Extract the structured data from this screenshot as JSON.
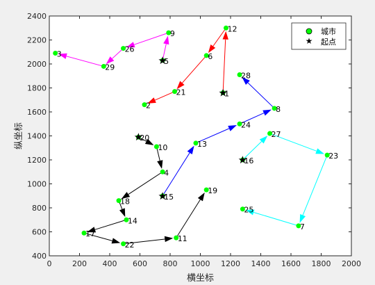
{
  "chart_data": {
    "type": "scatter",
    "xlabel": "横坐标",
    "ylabel": "纵坐标",
    "xlim": [
      0,
      2000
    ],
    "ylim": [
      400,
      2400
    ],
    "xticks": [
      0,
      200,
      400,
      600,
      800,
      1000,
      1200,
      1400,
      1600,
      1800,
      2000
    ],
    "yticks": [
      400,
      600,
      800,
      1000,
      1200,
      1400,
      1600,
      1800,
      2000,
      2200,
      2400
    ],
    "grid": false,
    "legend": {
      "placement": "top-right",
      "entries": [
        {
          "label": "城市",
          "marker": "circle",
          "color": "#00ff00"
        },
        {
          "label": "起点",
          "marker": "star",
          "color": "#000000"
        }
      ]
    },
    "cities": [
      {
        "id": "1",
        "x": 1150,
        "y": 1760
      },
      {
        "id": "2",
        "x": 630,
        "y": 1660
      },
      {
        "id": "3",
        "x": 40,
        "y": 2090
      },
      {
        "id": "4",
        "x": 750,
        "y": 1100
      },
      {
        "id": "5",
        "x": 750,
        "y": 2030
      },
      {
        "id": "6",
        "x": 1040,
        "y": 2070
      },
      {
        "id": "7",
        "x": 1650,
        "y": 650
      },
      {
        "id": "8",
        "x": 1490,
        "y": 1630
      },
      {
        "id": "9",
        "x": 790,
        "y": 2260
      },
      {
        "id": "10",
        "x": 710,
        "y": 1310
      },
      {
        "id": "11",
        "x": 840,
        "y": 550
      },
      {
        "id": "12",
        "x": 1170,
        "y": 2300
      },
      {
        "id": "13",
        "x": 970,
        "y": 1340
      },
      {
        "id": "14",
        "x": 510,
        "y": 700
      },
      {
        "id": "15",
        "x": 750,
        "y": 900
      },
      {
        "id": "16",
        "x": 1280,
        "y": 1200
      },
      {
        "id": "17",
        "x": 230,
        "y": 590
      },
      {
        "id": "18",
        "x": 460,
        "y": 860
      },
      {
        "id": "19",
        "x": 1040,
        "y": 950
      },
      {
        "id": "20",
        "x": 590,
        "y": 1390
      },
      {
        "id": "21",
        "x": 830,
        "y": 1770
      },
      {
        "id": "22",
        "x": 490,
        "y": 500
      },
      {
        "id": "23",
        "x": 1840,
        "y": 1240
      },
      {
        "id": "24",
        "x": 1260,
        "y": 1500
      },
      {
        "id": "25",
        "x": 1280,
        "y": 790
      },
      {
        "id": "26",
        "x": 490,
        "y": 2130
      },
      {
        "id": "27",
        "x": 1460,
        "y": 1420
      },
      {
        "id": "28",
        "x": 1260,
        "y": 1910
      },
      {
        "id": "29",
        "x": 360,
        "y": 1980
      }
    ],
    "start_points": [
      "1",
      "5",
      "15",
      "16",
      "20"
    ],
    "routes": [
      {
        "color": "#ff0000",
        "path": [
          "1",
          "12",
          "6",
          "21",
          "2"
        ]
      },
      {
        "color": "#ff00ff",
        "path": [
          "5",
          "9",
          "26",
          "29",
          "3"
        ]
      },
      {
        "color": "#0000ff",
        "path": [
          "15",
          "13",
          "24",
          "8",
          "28"
        ]
      },
      {
        "color": "#00ffff",
        "path": [
          "16",
          "27",
          "23",
          "7",
          "25"
        ]
      },
      {
        "color": "#000000",
        "path": [
          "20",
          "10",
          "4",
          "18",
          "14",
          "17",
          "22",
          "11",
          "19"
        ]
      }
    ]
  }
}
